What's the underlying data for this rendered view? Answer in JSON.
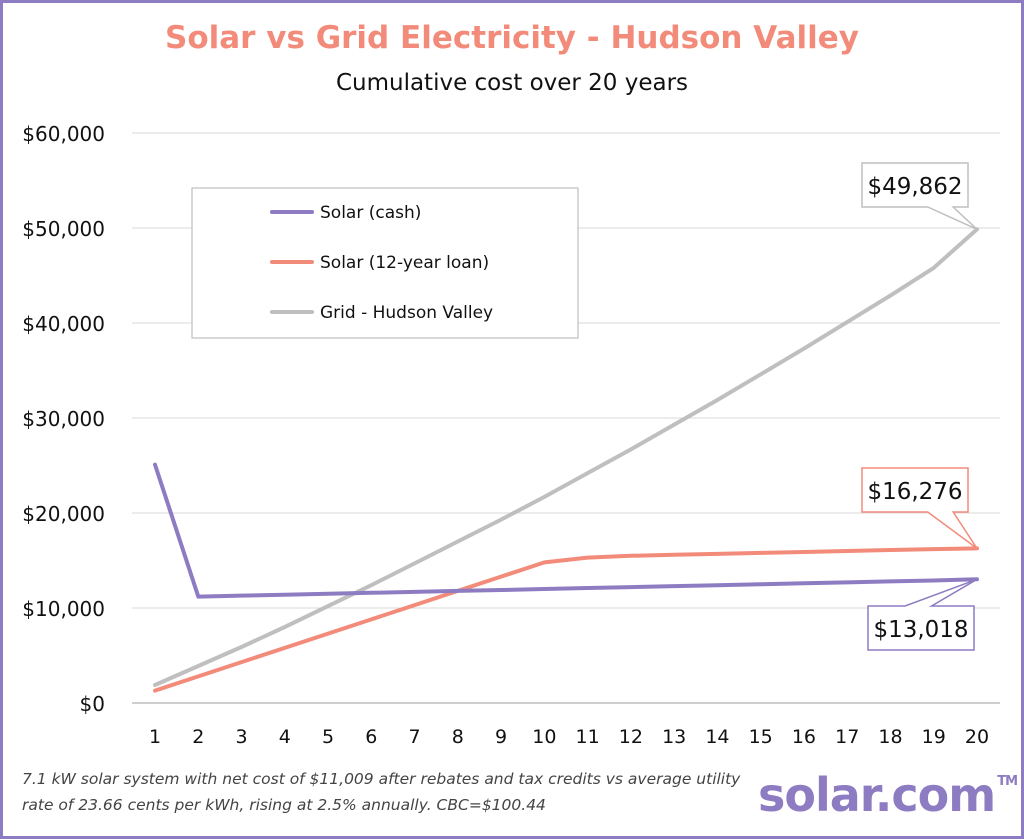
{
  "chart_data": {
    "type": "line",
    "title": "Solar vs Grid Electricity - Hudson Valley",
    "subtitle": "Cumulative cost over 20 years",
    "x": [
      1,
      2,
      3,
      4,
      5,
      6,
      7,
      8,
      9,
      10,
      11,
      12,
      13,
      14,
      15,
      16,
      17,
      18,
      19,
      20
    ],
    "ylim": [
      0,
      60000
    ],
    "yticks": [
      "$0",
      "$10,000",
      "$20,000",
      "$30,000",
      "$40,000",
      "$50,000",
      "$60,000"
    ],
    "ytick_values": [
      0,
      10000,
      20000,
      30000,
      40000,
      50000,
      60000
    ],
    "grid": true,
    "legend_position": "top-left",
    "series": [
      {
        "name": "Solar (cash)",
        "color": "#8e7cc3",
        "values": [
          25100,
          11200,
          11300,
          11400,
          11500,
          11600,
          11700,
          11800,
          11900,
          12000,
          12100,
          12200,
          12300,
          12400,
          12500,
          12600,
          12700,
          12800,
          12900,
          13018
        ]
      },
      {
        "name": "Solar (12-year loan)",
        "color": "#f28b7a",
        "values": [
          1300,
          2800,
          4300,
          5800,
          7300,
          8800,
          10300,
          11800,
          13300,
          14800,
          15300,
          15500,
          15600,
          15700,
          15800,
          15900,
          16000,
          16100,
          16200,
          16276
        ]
      },
      {
        "name": "Grid - Hudson Valley",
        "color": "#bfbfbf",
        "values": [
          1900,
          3900,
          5900,
          8000,
          10200,
          12400,
          14700,
          17000,
          19300,
          21700,
          24200,
          26700,
          29300,
          31900,
          34600,
          37300,
          40100,
          42900,
          45800,
          49862
        ]
      }
    ],
    "annotations": [
      {
        "text": "$49,862",
        "series": 2,
        "color": "#bfbfbf"
      },
      {
        "text": "$16,276",
        "series": 1,
        "color": "#f28b7a"
      },
      {
        "text": "$13,018",
        "series": 0,
        "color": "#8e7cc3"
      }
    ]
  },
  "footnote": "7.1 kW solar system with net cost of $11,009 after rebates and tax credits vs average utility rate of 23.66 cents per kWh, rising at 2.5% annually. CBC=$100.44",
  "brand": {
    "name": "solar.com",
    "tm": "TM"
  }
}
